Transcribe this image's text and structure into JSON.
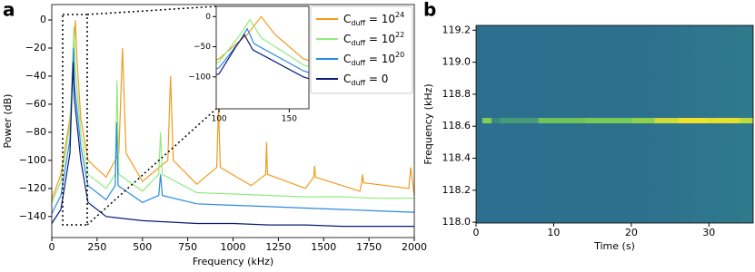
{
  "chart_data": [
    {
      "type": "line",
      "panel_label": "a",
      "xlabel": "Frequency (kHz)",
      "ylabel": "Power (dB)",
      "xlim": [
        0,
        2000
      ],
      "ylim": [
        -155,
        11
      ],
      "xticks": [
        0,
        250,
        500,
        750,
        1000,
        1250,
        1500,
        1750,
        2000
      ],
      "yticks": [
        0,
        {
          "value": -20,
          "label": "−20"
        },
        {
          "value": -40,
          "label": "−40"
        },
        {
          "value": -60,
          "label": "−60"
        },
        {
          "value": -80,
          "label": "−80"
        },
        {
          "value": -100,
          "label": "−100"
        },
        {
          "value": -120,
          "label": "−120"
        },
        {
          "value": -140,
          "label": "−140"
        }
      ],
      "legend": "upper right",
      "series": [
        {
          "name": [
            "C",
            "duff",
            " = 10",
            "24"
          ],
          "color": "#f39a1e",
          "x": [
            0,
            50,
            100,
            120,
            130,
            140,
            160,
            200,
            300,
            370,
            390,
            410,
            500,
            640,
            655,
            670,
            800,
            910,
            920,
            930,
            1100,
            1180,
            1185,
            1190,
            1400,
            1445,
            1450,
            1455,
            1700,
            1710,
            1715,
            1720,
            1970,
            1980,
            2000
          ],
          "values": [
            -128,
            -110,
            -70,
            -30,
            0,
            -30,
            -70,
            -100,
            -112,
            -95,
            -20,
            -95,
            -115,
            -100,
            -40,
            -100,
            -117,
            -105,
            -63,
            -105,
            -118,
            -110,
            -87,
            -110,
            -120,
            -112,
            -104,
            -112,
            -122,
            -116,
            -110,
            -116,
            -120,
            -105,
            -125
          ]
        },
        {
          "name": [
            "C",
            "duff",
            " = 10",
            "22"
          ],
          "color": "#8eec7c",
          "x": [
            0,
            50,
            100,
            115,
            122,
            130,
            160,
            200,
            300,
            350,
            360,
            370,
            500,
            590,
            600,
            610,
            800,
            1000,
            1200,
            1400,
            1600,
            1800,
            2000
          ],
          "values": [
            -130,
            -115,
            -75,
            -30,
            -5,
            -35,
            -80,
            -110,
            -120,
            -110,
            -43,
            -110,
            -122,
            -110,
            -80,
            -110,
            -123,
            -124,
            -125,
            -126,
            -126,
            -127,
            -127
          ]
        },
        {
          "name": [
            "C",
            "duff",
            " = 10",
            "20"
          ],
          "color": "#2a8ae0",
          "x": [
            0,
            50,
            100,
            115,
            120,
            125,
            160,
            200,
            300,
            350,
            358,
            366,
            500,
            590,
            600,
            610,
            800,
            1000,
            1200,
            1400,
            1600,
            1800,
            2000
          ],
          "values": [
            -138,
            -125,
            -85,
            -40,
            -20,
            -45,
            -90,
            -118,
            -128,
            -118,
            -73,
            -118,
            -130,
            -125,
            -110,
            -125,
            -131,
            -132,
            -133,
            -134,
            -135,
            -136,
            -137
          ]
        },
        {
          "name": [
            "C",
            "duff",
            " = 0"
          ],
          "color": "#0b1a78",
          "x": [
            0,
            50,
            100,
            112,
            118,
            124,
            160,
            200,
            300,
            500,
            800,
            1000,
            1200,
            1400,
            1600,
            1800,
            2000
          ],
          "values": [
            -145,
            -135,
            -95,
            -50,
            -30,
            -55,
            -100,
            -130,
            -140,
            -143,
            -145,
            -145,
            -146,
            -146,
            -147,
            -147,
            -147
          ]
        }
      ],
      "inset": {
        "xlim": [
          98,
          164
        ],
        "ylim": [
          -153,
          17
        ],
        "xticks": [
          100,
          150
        ],
        "yticks": [
          0,
          {
            "value": -50,
            "label": "−50"
          },
          {
            "value": -100,
            "label": "−100"
          }
        ]
      }
    },
    {
      "type": "spectrogram",
      "panel_label": "b",
      "xlabel": "Time (s)",
      "ylabel": "Frequency (kHz)",
      "xlim": [
        0,
        35.7
      ],
      "ylim": [
        117.995,
        119.23
      ],
      "xticks": [
        0,
        10,
        20,
        30
      ],
      "yticks": [
        {
          "value": 118.0,
          "label": "118.0"
        },
        118.2,
        118.4,
        118.6,
        118.8,
        {
          "value": 119.0,
          "label": "119.0"
        },
        119.2
      ],
      "signal": {
        "x": [
          0.8,
          2,
          3,
          8,
          14,
          20,
          23,
          26,
          30,
          34
        ],
        "y": [
          118.635,
          118.635,
          118.635,
          118.635,
          118.635,
          118.635,
          118.635,
          118.635,
          118.635,
          118.635
        ],
        "intensity": [
          0.55,
          0.1,
          0.2,
          0.45,
          0.5,
          0.6,
          0.85,
          1,
          0.95,
          0.8
        ]
      }
    }
  ]
}
